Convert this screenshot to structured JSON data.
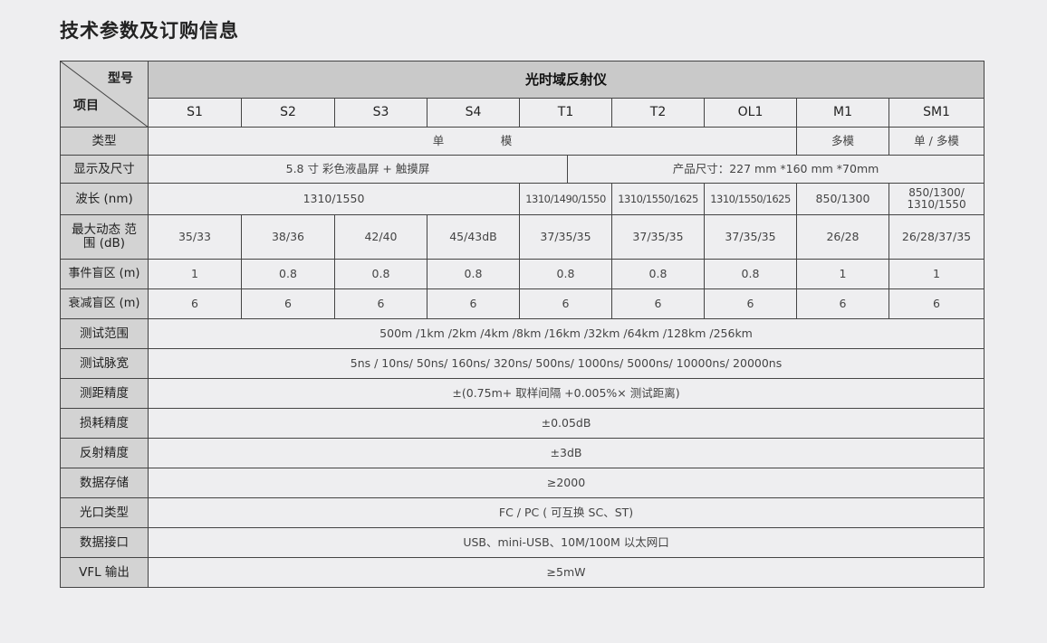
{
  "title": "技术参数及订购信息",
  "table": {
    "corner_model": "型号",
    "corner_item": "项目",
    "product": "光时域反射仪",
    "models": [
      "S1",
      "S2",
      "S3",
      "S4",
      "T1",
      "T2",
      "OL1",
      "M1",
      "SM1"
    ],
    "type": {
      "label": "类型",
      "single": "单　　　　　模",
      "multi": "多模",
      "single_multi": "单 / 多模"
    },
    "display": {
      "label": "显示及尺寸",
      "screen": "5.8 寸 彩色液晶屏 + 触摸屏",
      "size": "产品尺寸：227 mm *160 mm *70mm"
    },
    "wavelength": {
      "label": "波长 (nm)",
      "s": "1310/1550",
      "values": [
        "1310/1490/1550",
        "1310/1550/1625",
        "1310/1550/1625",
        "850/1300",
        "850/1300/ 1310/1550"
      ]
    },
    "dynamic_range": {
      "label": "最大动态 范围 (dB)",
      "values": [
        "35/33",
        "38/36",
        "42/40",
        "45/43dB",
        "37/35/35",
        "37/35/35",
        "37/35/35",
        "26/28",
        "26/28/37/35"
      ]
    },
    "event_dz": {
      "label": "事件盲区 (m)",
      "values": [
        "1",
        "0.8",
        "0.8",
        "0.8",
        "0.8",
        "0.8",
        "0.8",
        "1",
        "1"
      ]
    },
    "atten_dz": {
      "label": "衰减盲区 (m)",
      "values": [
        "6",
        "6",
        "6",
        "6",
        "6",
        "6",
        "6",
        "6",
        "6"
      ]
    },
    "rows": [
      {
        "label": "测试范围",
        "value": "500m /1km /2km /4km /8km /16km /32km /64km /128km /256km"
      },
      {
        "label": "测试脉宽",
        "value": "5ns / 10ns/ 50ns/ 160ns/ 320ns/ 500ns/ 1000ns/ 5000ns/ 10000ns/ 20000ns"
      },
      {
        "label": "测距精度",
        "value": "±(0.75m+ 取样间隔 +0.005%× 测试距离)"
      },
      {
        "label": "损耗精度",
        "value": "±0.05dB"
      },
      {
        "label": "反射精度",
        "value": "±3dB"
      },
      {
        "label": "数据存储",
        "value": "≥2000"
      },
      {
        "label": "光口类型",
        "value": "FC / PC ( 可互换 SC、ST)"
      },
      {
        "label": "数据接口",
        "value": "USB、mini-USB、10M/100M 以太网口"
      },
      {
        "label": "VFL 输出",
        "value": "≥5mW"
      }
    ]
  }
}
